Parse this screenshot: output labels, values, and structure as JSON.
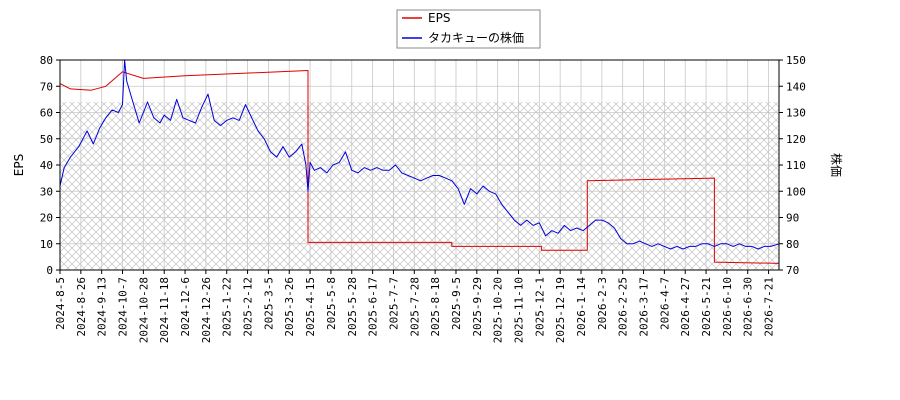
{
  "chart_data": {
    "type": "line",
    "legend": {
      "placement": "top-center",
      "entries": [
        "EPS",
        "タカキューの株価"
      ]
    },
    "y_left": {
      "label": "EPS",
      "range": [
        0,
        80
      ],
      "ticks": [
        "0",
        "10",
        "20",
        "30",
        "40",
        "50",
        "60",
        "70",
        "80"
      ]
    },
    "y_right": {
      "label": "株価",
      "range": [
        70,
        150
      ],
      "ticks": [
        "70",
        "80",
        "90",
        "100",
        "110",
        "120",
        "130",
        "140",
        "150"
      ]
    },
    "x_ticks": [
      "2024-8-5",
      "2024-8-26",
      "2024-9-13",
      "2024-10-7",
      "2024-10-28",
      "2024-11-18",
      "2024-12-6",
      "2024-12-26",
      "2025-1-22",
      "2025-2-12",
      "2025-3-5",
      "2025-3-26",
      "2025-4-15",
      "2025-5-8",
      "2025-5-28",
      "2025-6-17",
      "2025-7-7",
      "2025-7-28",
      "2025-8-18",
      "2025-9-5",
      "2025-9-29",
      "2025-10-20",
      "2025-11-10",
      "2025-12-1",
      "2025-12-19",
      "2026-1-14",
      "2026-2-3",
      "2026-2-25",
      "2026-3-17",
      "2026-4-7",
      "2026-4-27",
      "2026-5-21",
      "2026-6-10",
      "2026-6-30",
      "2026-7-21"
    ],
    "grid": true,
    "hatched_band_eps": [
      0,
      64
    ],
    "series": [
      {
        "name": "EPS",
        "axis": "left",
        "color": "#dd0000",
        "x": [
          0,
          0.5,
          1.5,
          2.2,
          3.0,
          4.0,
          6.0,
          11.9,
          11.9,
          18.8,
          18.8,
          23.1,
          23.1,
          25.3,
          25.3,
          31.4,
          31.4,
          34.5
        ],
        "y": [
          71,
          69,
          68.5,
          70,
          75.5,
          73,
          74,
          76,
          10.5,
          10.5,
          9,
          9,
          7.5,
          7.5,
          34,
          35,
          3,
          2.5
        ]
      },
      {
        "name": "タカキューの株価",
        "axis": "right",
        "color": "#0000dd",
        "x": [
          0,
          0.2,
          0.5,
          0.9,
          1.3,
          1.6,
          1.9,
          2.2,
          2.5,
          2.8,
          3.0,
          3.1,
          3.2,
          3.5,
          3.8,
          4.0,
          4.2,
          4.5,
          4.8,
          5.0,
          5.3,
          5.6,
          5.9,
          6.2,
          6.5,
          6.8,
          7.1,
          7.4,
          7.7,
          8.0,
          8.3,
          8.6,
          8.9,
          9.2,
          9.5,
          9.8,
          10.1,
          10.4,
          10.7,
          11.0,
          11.3,
          11.6,
          11.8,
          11.9,
          12.0,
          12.2,
          12.5,
          12.8,
          13.1,
          13.4,
          13.7,
          14.0,
          14.3,
          14.6,
          14.9,
          15.2,
          15.5,
          15.8,
          16.1,
          16.4,
          16.7,
          17.0,
          17.3,
          17.6,
          17.9,
          18.2,
          18.5,
          18.8,
          19.1,
          19.4,
          19.7,
          20.0,
          20.3,
          20.6,
          20.9,
          21.2,
          21.5,
          21.8,
          22.1,
          22.4,
          22.7,
          23.0,
          23.3,
          23.6,
          23.9,
          24.2,
          24.5,
          24.8,
          25.1,
          25.4,
          25.7,
          26.0,
          26.3,
          26.6,
          26.9,
          27.2,
          27.5,
          27.8,
          28.1,
          28.4,
          28.7,
          29.0,
          29.3,
          29.6,
          29.9,
          30.2,
          30.5,
          30.8,
          31.1,
          31.4,
          31.7,
          32.0,
          32.3,
          32.6,
          32.9,
          33.2,
          33.5,
          33.8,
          34.1,
          34.5
        ],
        "y": [
          102,
          109,
          113,
          117,
          123,
          118,
          124,
          128,
          131,
          130,
          133,
          150,
          142,
          134,
          126,
          130,
          134,
          128,
          126,
          129,
          127,
          135,
          128,
          127,
          126,
          132,
          137,
          127,
          125,
          127,
          128,
          127,
          133,
          128,
          123,
          120,
          115,
          113,
          117,
          113,
          115,
          118,
          110,
          100,
          111,
          108,
          109,
          107,
          110,
          111,
          115,
          108,
          107,
          109,
          108,
          109,
          108,
          108,
          110,
          107,
          106,
          105,
          104,
          105,
          106,
          106,
          105,
          104,
          101,
          95,
          101,
          99,
          102,
          100,
          99,
          95,
          92,
          89,
          87,
          89,
          87,
          88,
          83,
          85,
          84,
          87,
          85,
          86,
          85,
          87,
          89,
          89,
          88,
          86,
          82,
          80,
          80,
          81,
          80,
          79,
          80,
          79,
          78,
          79,
          78,
          79,
          79,
          80,
          80,
          79,
          80,
          80,
          79,
          80,
          79,
          79,
          78,
          79,
          79,
          80
        ]
      }
    ]
  }
}
